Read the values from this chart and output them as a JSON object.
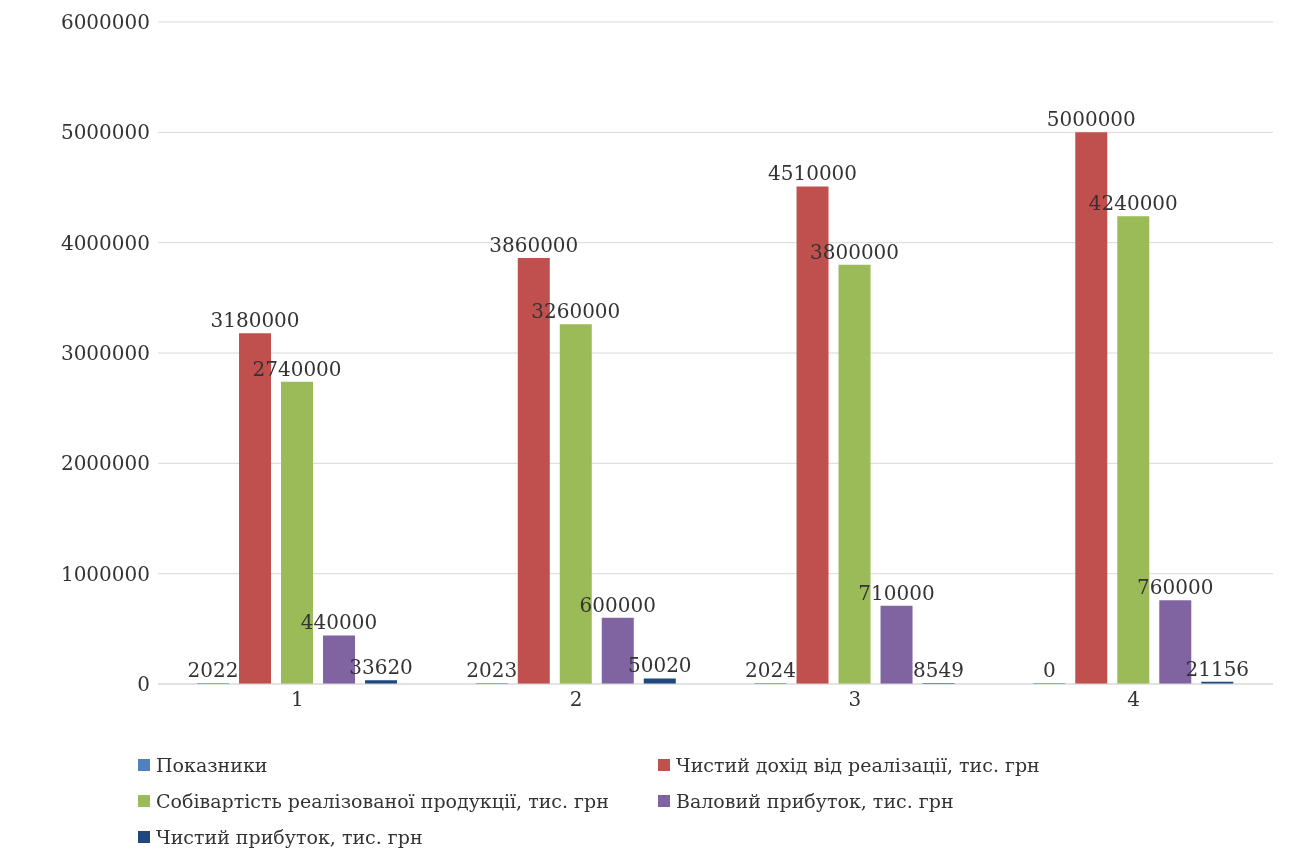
{
  "chart_data": {
    "type": "bar",
    "categories": [
      "1",
      "2",
      "3",
      "4"
    ],
    "series": [
      {
        "name": "Показники",
        "color": "#4f81bd",
        "values": [
          2022,
          2023,
          2024,
          0
        ]
      },
      {
        "name": "Чистий дохід від реалізації, тис. грн",
        "color": "#c0504d",
        "values": [
          3180000,
          3860000,
          4510000,
          5000000
        ]
      },
      {
        "name": "Собівартість реалізованої продукції, тис. грн",
        "color": "#9bbb59",
        "values": [
          2740000,
          3260000,
          3800000,
          4240000
        ]
      },
      {
        "name": "Валовий прибуток, тис. грн",
        "color": "#8064a2",
        "values": [
          440000,
          600000,
          710000,
          760000
        ]
      },
      {
        "name": "Чистий прибуток, тис. грн",
        "color": "#1f497d",
        "values": [
          33620,
          50020,
          8549,
          21156
        ]
      }
    ],
    "ylim": [
      0,
      6000000
    ],
    "yticks": [
      0,
      1000000,
      2000000,
      3000000,
      4000000,
      5000000,
      6000000
    ],
    "grid": "y",
    "legend": "bottom",
    "data_labels": true
  }
}
